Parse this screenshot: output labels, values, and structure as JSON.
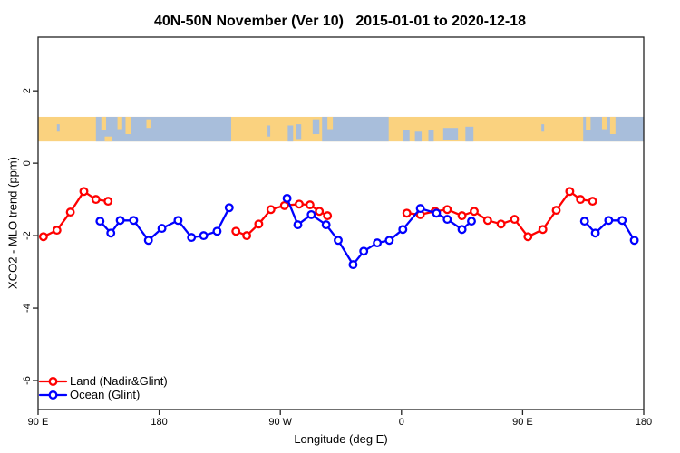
{
  "chart_data": {
    "type": "line",
    "title": "40N-50N November (Ver 10)   2015-01-01 to 2020-12-18",
    "xlabel": "Longitude (deg E)",
    "ylabel": "XCO2 - MLO trend (ppm)",
    "xlim": [
      90,
      540
    ],
    "ylim": [
      -6.8,
      3.48
    ],
    "grid": false,
    "legend_position": "bottom-left",
    "x_ticks": [
      {
        "lon": 90,
        "label": "90 E"
      },
      {
        "lon": 180,
        "label": "180"
      },
      {
        "lon": 270,
        "label": "90 W"
      },
      {
        "lon": 360,
        "label": "0"
      },
      {
        "lon": 450,
        "label": "90 E"
      },
      {
        "lon": 540,
        "label": "180"
      }
    ],
    "y_ticks": [
      {
        "value": 2,
        "label": "2"
      },
      {
        "value": 0,
        "label": "0"
      },
      {
        "value": -2,
        "label": "-2"
      },
      {
        "value": -4,
        "label": "-4"
      },
      {
        "value": -6,
        "label": "-6"
      }
    ],
    "legend": [
      {
        "label": "Land (Nadir&Glint)",
        "color": "#ff0000"
      },
      {
        "label": "Ocean (Glint)",
        "color": "#0000ff"
      }
    ],
    "map_band": {
      "description": "40N-50N latitude strip map, land vs ocean, repeats after 360",
      "y_range_ppm": [
        0.6,
        1.28
      ],
      "land_color": "#FAD27F",
      "ocean_color": "#A8BEDB",
      "ocean_segments_lon": [
        [
          133,
          233.5
        ],
        [
          301,
          350.5
        ],
        [
          495,
          540
        ]
      ],
      "sea_patches_lon": [
        [
          104,
          106,
          0.3,
          0.6
        ],
        [
          260.5,
          262.5,
          0.35,
          0.8
        ],
        [
          275.5,
          279.5,
          0.35,
          1.0
        ],
        [
          282,
          285.5,
          0.3,
          0.9
        ],
        [
          294,
          299,
          0.1,
          0.7
        ],
        [
          361,
          366,
          0.55,
          1.0
        ],
        [
          370,
          375,
          0.6,
          1.0
        ],
        [
          380,
          384,
          0.55,
          1.0
        ],
        [
          391,
          402,
          0.45,
          0.95
        ],
        [
          407.5,
          413.5,
          0.4,
          1.0
        ],
        [
          464,
          466,
          0.3,
          0.6
        ]
      ],
      "island_patches_lon": [
        [
          137,
          140.5,
          0.0,
          0.55
        ],
        [
          139.5,
          145,
          0.8,
          1.0
        ],
        [
          149,
          152.5,
          0.0,
          0.5
        ],
        [
          155,
          159,
          0.0,
          0.7
        ],
        [
          170.5,
          173.5,
          0.1,
          0.45
        ],
        [
          305,
          309,
          0.0,
          0.5
        ],
        [
          497,
          500.5,
          0.0,
          0.55
        ],
        [
          509,
          512.5,
          0.0,
          0.5
        ],
        [
          515,
          519,
          0.0,
          0.7
        ]
      ]
    },
    "series": [
      {
        "name": "Land (Nadir&Glint)",
        "color": "#ff0000",
        "marker": "open-circle",
        "segments": [
          [
            [
              94,
              -2.03
            ],
            [
              104,
              -1.85
            ],
            [
              114,
              -1.35
            ],
            [
              124,
              -0.78
            ],
            [
              133,
              -1.0
            ],
            [
              142,
              -1.05
            ]
          ],
          [
            [
              237,
              -1.88
            ],
            [
              245,
              -2.0
            ],
            [
              254,
              -1.68
            ],
            [
              263,
              -1.28
            ],
            [
              273,
              -1.17
            ],
            [
              284,
              -1.13
            ],
            [
              292,
              -1.15
            ],
            [
              299,
              -1.33
            ],
            [
              305,
              -1.45
            ]
          ],
          [
            [
              364,
              -1.38
            ],
            [
              374,
              -1.42
            ],
            [
              385,
              -1.33
            ],
            [
              394,
              -1.28
            ],
            [
              405,
              -1.45
            ],
            [
              414,
              -1.33
            ],
            [
              424,
              -1.58
            ],
            [
              434,
              -1.68
            ],
            [
              444,
              -1.55
            ],
            [
              454,
              -2.03
            ],
            [
              465,
              -1.83
            ],
            [
              475,
              -1.3
            ],
            [
              485,
              -0.78
            ],
            [
              493,
              -1.0
            ],
            [
              502,
              -1.05
            ]
          ]
        ]
      },
      {
        "name": "Ocean (Glint)",
        "color": "#0000ff",
        "marker": "open-circle",
        "segments": [
          [
            [
              136,
              -1.6
            ],
            [
              144,
              -1.93
            ],
            [
              151,
              -1.58
            ],
            [
              161,
              -1.58
            ],
            [
              172,
              -2.13
            ],
            [
              182,
              -1.8
            ],
            [
              194,
              -1.58
            ],
            [
              204,
              -2.05
            ],
            [
              213,
              -2.0
            ],
            [
              223,
              -1.88
            ],
            [
              232,
              -1.23
            ]
          ],
          [
            [
              275,
              -0.97
            ],
            [
              283,
              -1.7
            ],
            [
              293,
              -1.42
            ],
            [
              304,
              -1.7
            ],
            [
              313,
              -2.13
            ],
            [
              324,
              -2.8
            ],
            [
              332,
              -2.43
            ],
            [
              342,
              -2.2
            ],
            [
              351,
              -2.13
            ],
            [
              361,
              -1.83
            ],
            [
              374,
              -1.25
            ],
            [
              386,
              -1.38
            ],
            [
              394,
              -1.55
            ],
            [
              405,
              -1.83
            ],
            [
              412,
              -1.6
            ]
          ],
          [
            [
              496,
              -1.6
            ],
            [
              504,
              -1.93
            ],
            [
              514,
              -1.58
            ],
            [
              524,
              -1.58
            ],
            [
              533,
              -2.13
            ]
          ]
        ]
      }
    ]
  }
}
